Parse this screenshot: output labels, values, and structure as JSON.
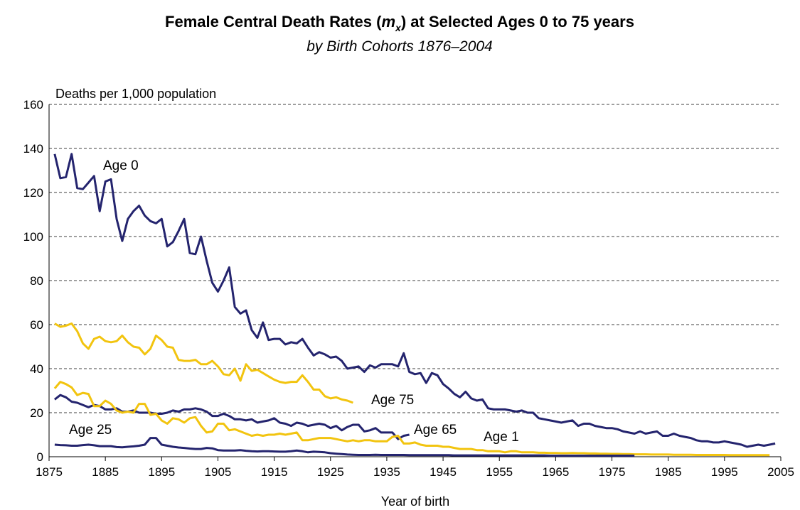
{
  "chart_data": {
    "type": "line",
    "title": [
      "Female Central Death Rates (",
      "m",
      "x",
      ") at Selected Ages 0 to 75 years"
    ],
    "subtitle": "by Birth Cohorts 1876–2004",
    "y_label": "Deaths per 1,000 population",
    "x_label": "Year of birth",
    "xlim": [
      1875,
      2005
    ],
    "xticks": [
      1875,
      1885,
      1895,
      1905,
      1915,
      1925,
      1935,
      1945,
      1955,
      1965,
      1975,
      1985,
      1995,
      2005
    ],
    "ylim": [
      0,
      160
    ],
    "yticks": [
      0,
      20,
      40,
      60,
      80,
      100,
      120,
      140,
      160
    ],
    "grid": true,
    "x": [
      1876,
      1877,
      1878,
      1879,
      1880,
      1881,
      1882,
      1883,
      1884,
      1885,
      1886,
      1887,
      1888,
      1889,
      1890,
      1891,
      1892,
      1893,
      1894,
      1895,
      1896,
      1897,
      1898,
      1899,
      1900,
      1901,
      1902,
      1903,
      1904,
      1905,
      1906,
      1907,
      1908,
      1909,
      1910,
      1911,
      1912,
      1913,
      1914,
      1915,
      1916,
      1917,
      1918,
      1919,
      1920,
      1921,
      1922,
      1923,
      1924,
      1925,
      1926,
      1927,
      1928,
      1929,
      1930,
      1931,
      1932,
      1933,
      1934,
      1935,
      1936,
      1937,
      1938,
      1939,
      1940,
      1941,
      1942,
      1943,
      1944,
      1945,
      1946,
      1947,
      1948,
      1949,
      1950,
      1951,
      1952,
      1953,
      1954,
      1955,
      1956,
      1957,
      1958,
      1959,
      1960,
      1961,
      1962,
      1963,
      1964,
      1965,
      1966,
      1967,
      1968,
      1969,
      1970,
      1971,
      1972,
      1973,
      1974,
      1975,
      1976,
      1977,
      1978,
      1979,
      1980,
      1981,
      1982,
      1983,
      1984,
      1985,
      1986,
      1987,
      1988,
      1989,
      1990,
      1991,
      1992,
      1993,
      1994,
      1995,
      1996,
      1997,
      1998,
      1999,
      2000,
      2001,
      2002,
      2003,
      2004
    ],
    "series": [
      {
        "name": "Age 0",
        "color": "#24246e",
        "values": [
          137.5,
          126.5,
          127,
          137.5,
          122,
          121.5,
          124.5,
          127.5,
          111.5,
          125,
          126,
          108,
          98,
          108,
          111.5,
          114,
          109.5,
          107,
          106,
          108,
          95.5,
          97.5,
          102.5,
          108,
          92.5,
          92,
          100,
          89,
          79,
          75,
          80,
          86,
          68,
          65,
          66.5,
          57.5,
          54,
          61,
          53,
          53.5,
          53.5,
          51,
          52,
          51.5,
          53.5,
          49.5,
          46,
          47.5,
          46.5,
          45,
          45.5,
          43.5,
          40,
          40.5,
          41,
          38.5,
          41.5,
          40.5,
          42,
          42,
          42,
          41,
          47,
          38.5,
          37.5,
          38,
          33.5,
          38,
          37,
          33,
          31,
          28.5,
          27,
          29.5,
          26.5,
          25.5,
          26,
          22,
          21.5,
          21.5,
          21.5,
          21,
          20.5,
          21,
          20,
          20,
          17.5,
          17,
          16.5,
          16,
          15.5,
          16,
          16.5,
          14,
          15,
          15,
          14,
          13.5,
          13,
          13,
          12.5,
          11.5,
          11,
          10.5,
          11.5,
          10.5,
          11,
          11.5,
          9.5,
          9.5,
          10.5,
          9.5,
          9,
          8.5,
          7.5,
          7,
          7,
          6.5,
          6.5,
          7,
          6.5,
          6,
          5.5,
          4.5,
          5,
          5.5,
          5,
          5.5,
          6
        ]
      },
      {
        "name": "Age 75",
        "color": "#f2c40f",
        "values": [
          60.5,
          59,
          59.5,
          60.5,
          57,
          51.5,
          49,
          53.5,
          54.5,
          52.5,
          52,
          52.5,
          55,
          52,
          50,
          49.5,
          46.5,
          49,
          55,
          53,
          50,
          49.5,
          44,
          43.5,
          43.5,
          44,
          42,
          42,
          43.5,
          41,
          37.5,
          37,
          40,
          34.5,
          42,
          39,
          39.5,
          38,
          36.5,
          35,
          34,
          33.5,
          34,
          34,
          37,
          34,
          30.5,
          30.5,
          27.5,
          26.5,
          27,
          26,
          25.5,
          24.5,
          null,
          null,
          null,
          null,
          null,
          null,
          null,
          null,
          null,
          null,
          null,
          null,
          null,
          null,
          null,
          null,
          null,
          null,
          null,
          null,
          null,
          null,
          null,
          null,
          null,
          null,
          null,
          null,
          null,
          null,
          null,
          null,
          null,
          null,
          null,
          null,
          null,
          null,
          null,
          null,
          null,
          null,
          null,
          null,
          null,
          null,
          null,
          null,
          null,
          null,
          null,
          null,
          null,
          null,
          null,
          null,
          null,
          null,
          null,
          null,
          null,
          null,
          null,
          null,
          null,
          null,
          null,
          null,
          null,
          null,
          null,
          null,
          null,
          null,
          null
        ]
      },
      {
        "name": "Age 65",
        "color": "#24246e",
        "values": [
          26,
          28,
          27,
          25,
          24.5,
          23.5,
          22.5,
          23.5,
          23,
          21.5,
          21.5,
          22,
          20.5,
          20.5,
          21,
          20,
          20,
          20,
          19.5,
          19.5,
          20,
          21,
          20.5,
          21.5,
          21.5,
          22,
          21.5,
          20.5,
          18.5,
          18.5,
          19.5,
          18.5,
          17,
          17,
          16.5,
          17,
          15.5,
          16,
          16.5,
          17.5,
          15.5,
          15,
          14,
          15.5,
          15,
          14,
          14.5,
          15,
          14.5,
          13,
          14,
          12,
          13.5,
          14.5,
          14.5,
          11.5,
          12,
          13,
          11,
          11,
          11,
          8,
          9.5,
          10,
          null,
          null,
          null,
          null,
          null,
          null,
          null,
          null,
          null,
          null,
          null,
          null,
          null,
          null,
          null,
          null,
          null,
          null,
          null,
          null,
          null,
          null,
          null,
          null,
          null,
          null,
          null,
          null,
          null,
          null,
          null,
          null,
          null,
          null,
          null,
          null,
          null,
          null,
          null,
          null,
          null,
          null,
          null,
          null,
          null,
          null,
          null,
          null,
          null,
          null,
          null,
          null,
          null,
          null,
          null,
          null,
          null,
          null,
          null,
          null,
          null,
          null,
          null,
          null,
          null
        ]
      },
      {
        "name": "Age 1",
        "color": "#f2c40f",
        "values": [
          31,
          34,
          33,
          31.5,
          28,
          29,
          28.5,
          23,
          23,
          25.5,
          24,
          21,
          20,
          20.5,
          20,
          24,
          24,
          19,
          19.5,
          16.5,
          15,
          17.5,
          17,
          15.5,
          17.5,
          18,
          14,
          11,
          11.5,
          15,
          15,
          12,
          12.5,
          11.5,
          10.5,
          9.5,
          10,
          9.5,
          10,
          10,
          10.5,
          10,
          10.5,
          11,
          7.5,
          7.5,
          8,
          8.5,
          8.5,
          8.5,
          8,
          7.5,
          7,
          7.5,
          7,
          7.5,
          7.5,
          7,
          7,
          7,
          9,
          9.5,
          6,
          6,
          6.5,
          5.5,
          5,
          5,
          5,
          4.5,
          4.5,
          4,
          3.5,
          3.5,
          3.5,
          3,
          3,
          2.5,
          2.5,
          2.5,
          2,
          2.5,
          2.5,
          2,
          2,
          2,
          1.8,
          1.8,
          1.7,
          1.7,
          1.6,
          1.6,
          1.7,
          1.6,
          1.6,
          1.5,
          1.5,
          1.4,
          1.4,
          1.3,
          1.3,
          1.2,
          1.2,
          1.1,
          1.1,
          1.1,
          1,
          1,
          1,
          1,
          0.9,
          0.9,
          0.9,
          0.9,
          0.8,
          0.8,
          0.8,
          0.8,
          0.8,
          0.8,
          0.7,
          0.7,
          0.7,
          0.7,
          0.7,
          0.7,
          0.7,
          0.7,
          null
        ]
      },
      {
        "name": "Age 25",
        "color": "#24246e",
        "values": [
          5.5,
          5.3,
          5.2,
          5,
          5,
          5.3,
          5.5,
          5.2,
          4.8,
          4.8,
          4.8,
          4.4,
          4.3,
          4.5,
          4.7,
          5,
          5.5,
          8.5,
          8.5,
          5.5,
          5,
          4.5,
          4.2,
          4,
          3.7,
          3.5,
          3.5,
          4,
          3.8,
          3,
          2.8,
          2.8,
          2.8,
          3,
          2.7,
          2.5,
          2.4,
          2.5,
          2.5,
          2.4,
          2.3,
          2.3,
          2.5,
          2.8,
          2.5,
          2,
          2.3,
          2.2,
          2,
          1.6,
          1.4,
          1.2,
          1,
          0.9,
          0.8,
          0.8,
          0.8,
          0.9,
          0.8,
          0.8,
          0.8,
          0.8,
          0.8,
          0.7,
          0.7,
          0.7,
          0.7,
          0.7,
          0.7,
          0.7,
          0.7,
          0.6,
          0.6,
          0.6,
          0.6,
          0.6,
          0.6,
          0.6,
          0.6,
          0.6,
          0.6,
          0.6,
          0.6,
          0.6,
          0.6,
          0.6,
          0.6,
          0.6,
          0.5,
          0.5,
          0.5,
          0.5,
          0.5,
          0.5,
          0.5,
          0.5,
          0.5,
          0.5,
          0.5,
          0.5,
          0.5,
          0.5,
          0.5,
          0.5,
          null,
          null,
          null,
          null,
          null,
          null,
          null,
          null,
          null,
          null,
          null,
          null,
          null,
          null,
          null,
          null,
          null,
          null,
          null,
          null,
          null,
          null,
          null,
          null,
          null
        ]
      }
    ]
  }
}
